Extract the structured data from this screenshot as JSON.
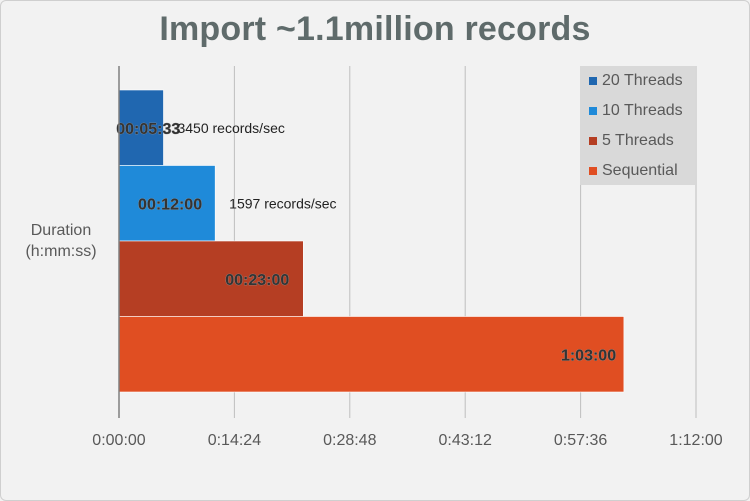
{
  "chart_data": {
    "type": "bar",
    "orientation": "horizontal",
    "title": "Import ~1.1million records",
    "ylabel": "Duration (h:mm:ss)",
    "xlim_seconds": [
      0,
      4320
    ],
    "x_tick_labels": [
      "0:00:00",
      "0:14:24",
      "0:28:48",
      "0:43:12",
      "0:57:36",
      "1:12:00"
    ],
    "legend_position": "top-right",
    "grid": true,
    "series": [
      {
        "name": "20 Threads",
        "label": "00:05:33",
        "value_seconds": 333,
        "rate_label": "3450 records/sec",
        "color": "#2067b0"
      },
      {
        "name": "10 Threads",
        "label": "00:12:00",
        "value_seconds": 720,
        "rate_label": "1597 records/sec",
        "color": "#1f8ad9"
      },
      {
        "name": "5 Threads",
        "label": "00:23:00",
        "value_seconds": 1380,
        "rate_label": "",
        "color": "#b53e23"
      },
      {
        "name": "Sequential",
        "label": "1:03:00",
        "value_seconds": 3780,
        "rate_label": "",
        "color": "#e04e22"
      }
    ]
  }
}
